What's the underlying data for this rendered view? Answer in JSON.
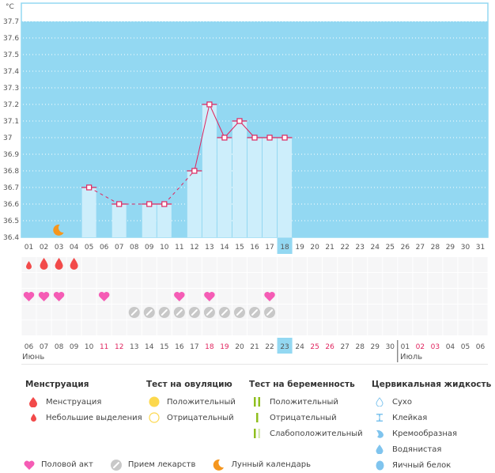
{
  "chart_data": {
    "type": "bar",
    "title": "",
    "ylabel": "°C",
    "xlabel": "",
    "ylim": [
      36.4,
      37.8
    ],
    "yticks": [
      "36.4",
      "36.5",
      "36.6",
      "36.7",
      "36.8",
      "36.9",
      "37",
      "37.1",
      "37.2",
      "37.3",
      "37.4",
      "37.5",
      "37.6",
      "37.7"
    ],
    "x_top": [
      "01",
      "02",
      "03",
      "04",
      "05",
      "06",
      "07",
      "08",
      "09",
      "10",
      "11",
      "12",
      "13",
      "14",
      "15",
      "16",
      "17",
      "18",
      "19",
      "20",
      "21",
      "22",
      "23",
      "24",
      "25",
      "26",
      "27",
      "28",
      "29",
      "30",
      "31"
    ],
    "highlight_top_index": 17,
    "temperatures": [
      {
        "day": 5,
        "value": 36.7
      },
      {
        "day": 7,
        "value": 36.6
      },
      {
        "day": 9,
        "value": 36.6
      },
      {
        "day": 10,
        "value": 36.6
      },
      {
        "day": 12,
        "value": 36.8
      },
      {
        "day": 13,
        "value": 37.2
      },
      {
        "day": 14,
        "value": 37.0
      },
      {
        "day": 15,
        "value": 37.1
      },
      {
        "day": 16,
        "value": 37.0
      },
      {
        "day": 17,
        "value": 37.0
      },
      {
        "day": 18,
        "value": 37.0
      }
    ],
    "dashed_segments": [
      [
        5,
        7
      ],
      [
        7,
        9
      ],
      [
        10,
        12
      ]
    ],
    "moon_day": 3,
    "grid": true
  },
  "symbol_rows": {
    "menstruation_heavy_days": [
      2,
      3,
      4
    ],
    "menstruation_light_days": [
      1
    ],
    "intercourse_days": [
      1,
      2,
      3,
      6,
      11,
      13,
      17
    ],
    "medication_days": [
      8,
      9,
      10,
      11,
      12,
      13,
      14,
      15,
      16,
      17
    ]
  },
  "bottom_axis": {
    "labels": [
      {
        "t": "06",
        "w": false
      },
      {
        "t": "07",
        "w": false
      },
      {
        "t": "08",
        "w": false
      },
      {
        "t": "09",
        "w": false
      },
      {
        "t": "10",
        "w": false
      },
      {
        "t": "11",
        "w": true
      },
      {
        "t": "12",
        "w": true
      },
      {
        "t": "13",
        "w": false
      },
      {
        "t": "14",
        "w": false
      },
      {
        "t": "15",
        "w": false
      },
      {
        "t": "16",
        "w": false
      },
      {
        "t": "17",
        "w": false
      },
      {
        "t": "18",
        "w": true
      },
      {
        "t": "19",
        "w": true
      },
      {
        "t": "20",
        "w": false
      },
      {
        "t": "21",
        "w": false
      },
      {
        "t": "22",
        "w": false
      },
      {
        "t": "23",
        "w": false
      },
      {
        "t": "24",
        "w": false
      },
      {
        "t": "25",
        "w": true
      },
      {
        "t": "26",
        "w": true
      },
      {
        "t": "27",
        "w": false
      },
      {
        "t": "28",
        "w": false
      },
      {
        "t": "29",
        "w": false
      },
      {
        "t": "30",
        "w": false
      },
      {
        "t": "01",
        "w": false
      },
      {
        "t": "02",
        "w": true
      },
      {
        "t": "03",
        "w": true
      },
      {
        "t": "04",
        "w": false
      },
      {
        "t": "05",
        "w": false
      },
      {
        "t": "06",
        "w": false
      }
    ],
    "highlight_index": 17,
    "month_split_index": 25,
    "month1": "Июнь",
    "month2": "Июль"
  },
  "legend": {
    "menstruation": {
      "title": "Менструация",
      "items": [
        "Менструация",
        "Небольшие выделения"
      ]
    },
    "ovulation": {
      "title": "Тест на овуляцию",
      "items": [
        "Положительный",
        "Отрицательный"
      ]
    },
    "pregnancy": {
      "title": "Тест на беременность",
      "items": [
        "Положительный",
        "Отрицательный",
        "Слабоположительный"
      ]
    },
    "cervical": {
      "title": "Цервикальная жидкость",
      "items": [
        "Сухо",
        "Клейкая",
        "Кремообразная",
        "Водянистая",
        "Яичный белок"
      ]
    },
    "bottom": [
      "Половой акт",
      "Прием лекарств",
      "Лунный календарь"
    ]
  },
  "colors": {
    "chart_bg": "#93d8f2",
    "bar": "#cdeefb",
    "line": "#e0245e",
    "blood": "#f24a4a",
    "heart": "#f55cb5",
    "pill": "#c8c8c8",
    "moon": "#f5961e",
    "ovu": "#fcd84d",
    "preg": "#8fbf1e",
    "preg_light": "#d6e8b0",
    "cervical": "#7fc4ee"
  }
}
